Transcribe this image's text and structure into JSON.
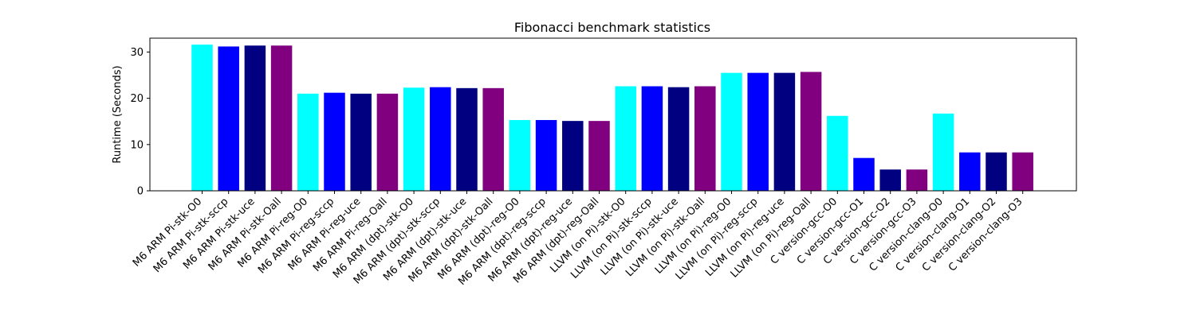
{
  "chart_data": {
    "type": "bar",
    "title": "Fibonacci benchmark statistics",
    "xlabel": "",
    "ylabel": "Runtime (Seconds)",
    "ylim": [
      0,
      33
    ],
    "yticks": [
      0,
      10,
      20,
      30
    ],
    "grid": false,
    "categories": [
      "M6 ARM Pi-stk-O0",
      "M6 ARM Pi-stk-sccp",
      "M6 ARM Pi-stk-uce",
      "M6 ARM Pi-stk-Oall",
      "M6 ARM Pi-reg-O0",
      "M6 ARM Pi-reg-sccp",
      "M6 ARM Pi-reg-uce",
      "M6 ARM Pi-reg-Oall",
      "M6 ARM (dpt)-stk-O0",
      "M6 ARM (dpt)-stk-sccp",
      "M6 ARM (dpt)-stk-uce",
      "M6 ARM (dpt)-stk-Oall",
      "M6 ARM (dpt)-reg-O0",
      "M6 ARM (dpt)-reg-sccp",
      "M6 ARM (dpt)-reg-uce",
      "M6 ARM (dpt)-reg-Oall",
      "LLVM (on Pi)-stk-O0",
      "LLVM (on Pi)-stk-sccp",
      "LLVM (on Pi)-stk-uce",
      "LLVM (on Pi)-stk-Oall",
      "LLVM (on Pi)-reg-O0",
      "LLVM (on Pi)-reg-sccp",
      "LLVM (on Pi)-reg-uce",
      "LLVM (on Pi)-reg-Oall",
      "C version-gcc-O0",
      "C version-gcc-O1",
      "C version-gcc-O2",
      "C version-gcc-O3",
      "C version-clang-O0",
      "C version-clang-O1",
      "C version-clang-O2",
      "C version-clang-O3"
    ],
    "values": [
      31.6,
      31.2,
      31.4,
      31.4,
      21.0,
      21.2,
      21.0,
      21.0,
      22.3,
      22.4,
      22.2,
      22.2,
      15.3,
      15.3,
      15.1,
      15.1,
      22.6,
      22.6,
      22.4,
      22.6,
      25.5,
      25.5,
      25.5,
      25.7,
      16.2,
      7.1,
      4.6,
      4.6,
      16.7,
      8.3,
      8.3,
      8.3
    ],
    "bar_colors": [
      "#00ffff",
      "#0000ff",
      "#000080",
      "#800080",
      "#00ffff",
      "#0000ff",
      "#000080",
      "#800080",
      "#00ffff",
      "#0000ff",
      "#000080",
      "#800080",
      "#00ffff",
      "#0000ff",
      "#000080",
      "#800080",
      "#00ffff",
      "#0000ff",
      "#000080",
      "#800080",
      "#00ffff",
      "#0000ff",
      "#000080",
      "#800080",
      "#00ffff",
      "#0000ff",
      "#000080",
      "#800080",
      "#00ffff",
      "#0000ff",
      "#000080",
      "#800080"
    ]
  }
}
